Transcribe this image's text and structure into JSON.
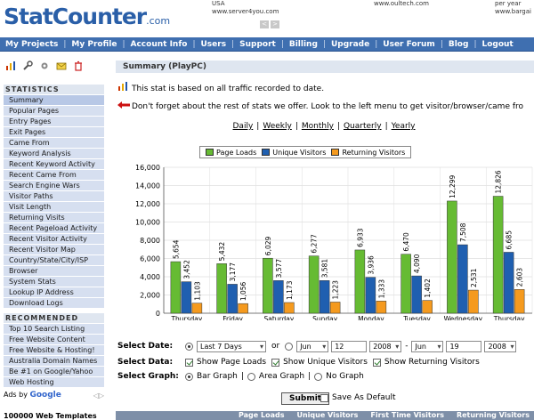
{
  "header": {
    "logo_main": "StatCounter",
    "logo_suffix": ".com",
    "ad1": [
      "USA",
      "www.server4you.com"
    ],
    "ad2": [
      "www.oultech.com"
    ],
    "ad3": [
      "per year",
      "www.bargai"
    ],
    "ad_prev": "<",
    "ad_next": ">"
  },
  "nav": [
    "My Projects",
    "My Profile",
    "Account Info",
    "Users",
    "Support",
    "Billing",
    "Upgrade",
    "User Forum",
    "Blog",
    "Logout"
  ],
  "sidebar": {
    "stats_heading": "STATISTICS",
    "stats_items": [
      "Summary",
      "Popular Pages",
      "Entry Pages",
      "Exit Pages",
      "Came From",
      "Keyword Analysis",
      "Recent Keyword Activity",
      "Recent Came From",
      "Search Engine Wars",
      "Visitor Paths",
      "Visit Length",
      "Returning Visits",
      "Recent Pageload Activity",
      "Recent Visitor Activity",
      "Recent Visitor Map",
      "Country/State/City/ISP",
      "Browser",
      "System Stats",
      "Lookup IP Address",
      "Download Logs"
    ],
    "rec_heading": "RECOMMENDED",
    "rec_items": [
      "Top 10 Search Listing",
      "Free Website Content",
      "Free Website & Hosting!",
      "Australia Domain Names",
      "Be #1 on Google/Yahoo",
      "Web Hosting"
    ],
    "ads_by": "Ads by",
    "ads_brand": "Google",
    "ads_nav": "◁▷",
    "bottom_ad": "100000 Web Templates"
  },
  "main": {
    "summary_title": "Summary (PlayPC)",
    "info_1": "This stat is based on all traffic recorded to date.",
    "info_2": "Don't forget about the rest of stats we offer. Look to the left menu to get visitor/browser/came fro",
    "periods": [
      "Daily",
      "Weekly",
      "Monthly",
      "Quarterly",
      "Yearly"
    ]
  },
  "chart_data": {
    "type": "bar",
    "categories": [
      "Thursday",
      "Friday",
      "Saturday",
      "Sunday",
      "Monday",
      "Tuesday",
      "Wednesday",
      "Thursday"
    ],
    "series": [
      {
        "name": "Page Loads",
        "color": "#66bb33",
        "values": [
          5654,
          5432,
          6029,
          6277,
          6933,
          6470,
          12299,
          12826
        ]
      },
      {
        "name": "Unique Visitors",
        "color": "#1f5fb0",
        "values": [
          3452,
          3177,
          3577,
          3581,
          3936,
          4090,
          7508,
          6685
        ]
      },
      {
        "name": "Returning Visitors",
        "color": "#f59a1e",
        "values": [
          1103,
          1056,
          1173,
          1223,
          1333,
          1402,
          2531,
          2603
        ]
      }
    ],
    "ylim": [
      0,
      16000
    ],
    "yticks": [
      0,
      2000,
      4000,
      6000,
      8000,
      10000,
      12000,
      14000,
      16000
    ],
    "ytick_labels": [
      "0",
      "2,000",
      "4,000",
      "6,000",
      "8,000",
      "10,000",
      "12,000",
      "14,000",
      "16,000"
    ],
    "value_labels": [
      [
        "5,654",
        "5,432",
        "6,029",
        "6,277",
        "6,933",
        "6,470",
        "12,299",
        "12,826"
      ],
      [
        "3,452",
        "3,177",
        "3,577",
        "3,581",
        "3,936",
        "4,090",
        "7,508",
        "6,685"
      ],
      [
        "1,103",
        "1,056",
        "1,173",
        "1,223",
        "1,333",
        "1,402",
        "2,531",
        "2,603"
      ]
    ],
    "grid": true,
    "legend": "top"
  },
  "form": {
    "date_label": "Select Date:",
    "range_value": "Last 7 Days",
    "or_text": "or",
    "from_month": "Jun",
    "from_day": "12",
    "from_year": "2008",
    "dash": "-",
    "to_month": "Jun",
    "to_day": "19",
    "to_year": "2008",
    "data_label": "Select Data:",
    "show_page_loads": "Show Page Loads",
    "show_unique": "Show Unique Visitors",
    "show_returning": "Show Returning Visitors",
    "graph_label": "Select Graph:",
    "bar_graph": "Bar Graph",
    "area_graph": "Area Graph",
    "no_graph": "No Graph",
    "pipe": "|",
    "submit": "Submit",
    "save_default": "Save As Default"
  },
  "table": {
    "headers": [
      "Page Loads",
      "Unique Visitors",
      "First Time Visitors",
      "Returning Visitors"
    ]
  }
}
